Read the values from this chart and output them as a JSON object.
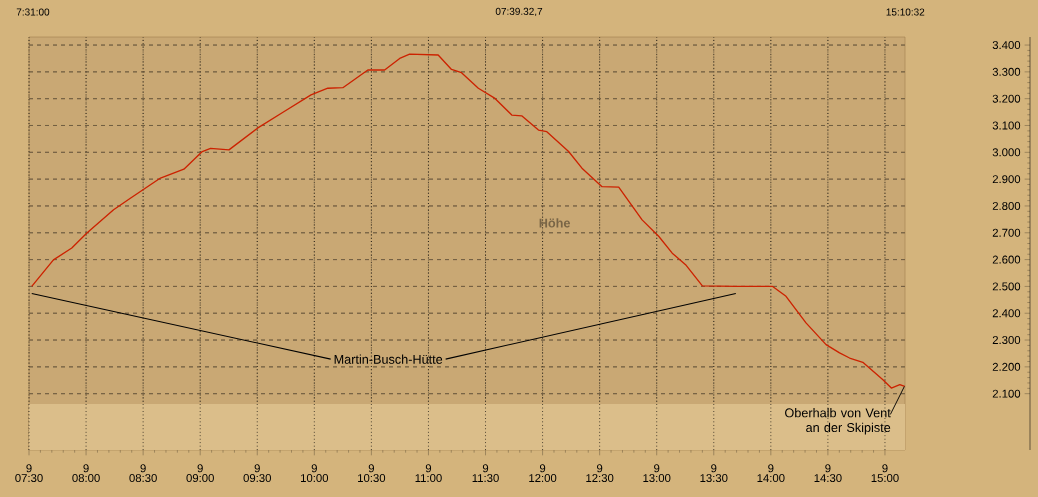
{
  "chart_data": {
    "type": "line",
    "title": "Höhe",
    "x": [
      7.524,
      7.714,
      7.875,
      8.007,
      8.241,
      8.388,
      8.564,
      8.652,
      8.857,
      9.018,
      9.091,
      9.252,
      9.502,
      9.736,
      9.971,
      10.118,
      10.25,
      10.469,
      10.616,
      10.748,
      10.835,
      11.085,
      11.202,
      11.29,
      11.437,
      11.583,
      11.73,
      11.817,
      11.964,
      12.037,
      12.228,
      12.345,
      12.521,
      12.667,
      12.872,
      13.019,
      13.136,
      13.253,
      13.4,
      13.693,
      14.016,
      14.133,
      14.308,
      14.484,
      14.602,
      14.69,
      14.806,
      14.982,
      15.056,
      15.13,
      15.173
    ],
    "series": [
      {
        "color": "#cc2200",
        "values": [
          2500,
          2599,
          2643,
          2699,
          2786,
          2829,
          2879,
          2904,
          2937,
          3003,
          3015,
          3009,
          3090,
          3152,
          3214,
          3239,
          3241,
          3307,
          3307,
          3350,
          3366,
          3363,
          3309,
          3297,
          3239,
          3201,
          3139,
          3136,
          3083,
          3077,
          3003,
          2941,
          2872,
          2870,
          2748,
          2686,
          2624,
          2581,
          2502,
          2500,
          2500,
          2463,
          2364,
          2283,
          2252,
          2233,
          2217,
          2152,
          2121,
          2134,
          2127
        ]
      }
    ],
    "xlim": [
      7.5,
      15.1756
    ],
    "xticks": [
      {
        "value": 7.5,
        "label": "07:30"
      },
      {
        "value": 8,
        "label": "08:00"
      },
      {
        "value": 8.5,
        "label": "08:30"
      },
      {
        "value": 9,
        "label": "09:00"
      },
      {
        "value": 9.5,
        "label": "09:30"
      },
      {
        "value": 10,
        "label": "10:00"
      },
      {
        "value": 10.5,
        "label": "10:30"
      },
      {
        "value": 11,
        "label": "11:00"
      },
      {
        "value": 11.5,
        "label": "11:30"
      },
      {
        "value": 12,
        "label": "12:00"
      },
      {
        "value": 12.5,
        "label": "12:30"
      },
      {
        "value": 13,
        "label": "13:00"
      },
      {
        "value": 13.5,
        "label": "13:30"
      },
      {
        "value": 14,
        "label": "14:00"
      },
      {
        "value": 14.5,
        "label": "14:30"
      },
      {
        "value": 15,
        "label": "15:00"
      }
    ],
    "ylim": [
      1890,
      3430
    ],
    "yticks": [
      {
        "value": 2100,
        "label": "2.100"
      },
      {
        "value": 2200,
        "label": "2.200"
      },
      {
        "value": 2300,
        "label": "2.300"
      },
      {
        "value": 2400,
        "label": "2.400"
      },
      {
        "value": 2500,
        "label": "2.500"
      },
      {
        "value": 2600,
        "label": "2.600"
      },
      {
        "value": 2700,
        "label": "2.700"
      },
      {
        "value": 2800,
        "label": "2.800"
      },
      {
        "value": 2900,
        "label": "2.900"
      },
      {
        "value": 3000,
        "label": "3.000"
      },
      {
        "value": 3100,
        "label": "3.100"
      },
      {
        "value": 3200,
        "label": "3.200"
      },
      {
        "value": 3300,
        "label": "3.300"
      },
      {
        "value": 3400,
        "label": "3.400"
      }
    ],
    "grid": true,
    "marker": "none",
    "line_style": "solid",
    "bands": [
      {
        "axis": "y",
        "from": 1890,
        "to": 2062,
        "color": "#dbbe8a"
      }
    ],
    "annotations": [
      "7:31:00",
      "07:39.32,7",
      "15:10:32",
      "Martin-Busch-Hütte",
      {
        "text": "Oberhalb von Vent an der Skipiste",
        "x": 15.17,
        "y": 2127
      },
      "9",
      "9",
      "9",
      "9",
      "9",
      "9",
      "9",
      "9",
      "9",
      "9",
      "9",
      "9",
      "9",
      "9",
      "9",
      "9"
    ]
  }
}
